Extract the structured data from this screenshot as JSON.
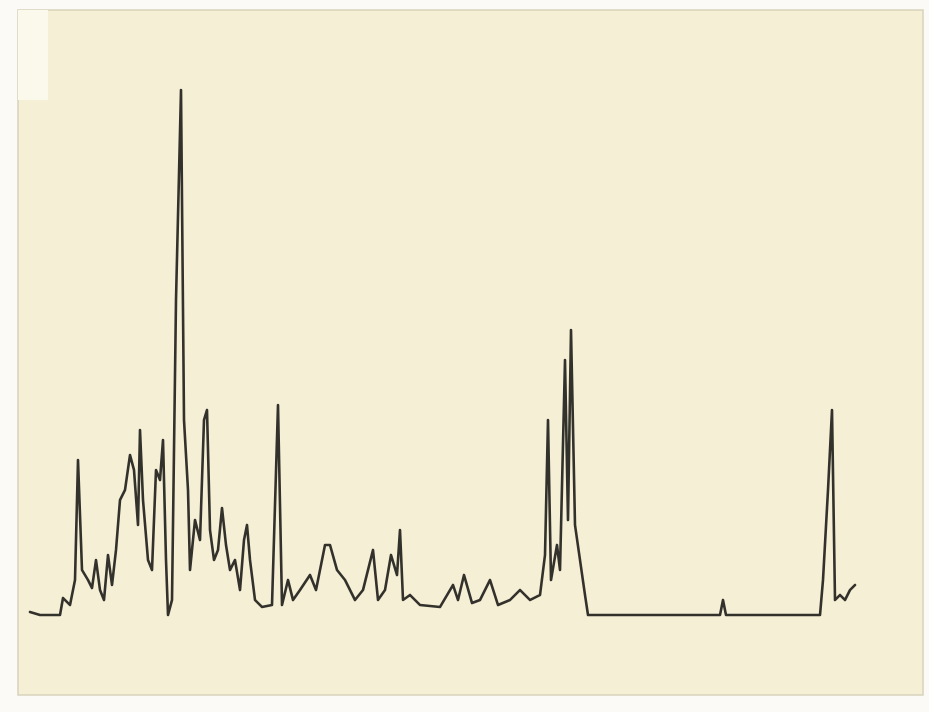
{
  "chart_data": {
    "type": "line",
    "x": [
      30,
      40,
      60,
      63,
      70,
      75,
      78,
      82,
      88,
      92,
      96,
      100,
      104,
      108,
      112,
      116,
      120,
      125,
      130,
      134,
      138,
      140,
      143,
      148,
      152,
      156,
      160,
      163,
      166,
      168,
      172,
      176,
      181,
      184,
      188,
      190,
      195,
      200,
      204,
      207,
      210,
      214,
      218,
      222,
      226,
      230,
      235,
      240,
      244,
      247,
      250,
      255,
      262,
      272,
      278,
      282,
      288,
      293,
      300,
      310,
      316,
      325,
      330,
      337,
      345,
      355,
      363,
      373,
      378,
      385,
      391,
      397,
      400,
      403,
      410,
      420,
      440,
      453,
      458,
      464,
      472,
      480,
      490,
      498,
      510,
      520,
      530,
      540,
      545,
      548,
      551,
      557,
      560,
      565,
      568,
      571,
      575,
      580,
      585,
      588,
      620,
      720,
      723,
      726,
      820,
      823,
      828,
      832,
      835,
      840,
      845,
      850,
      855
    ],
    "values": [
      8,
      5,
      5,
      22,
      15,
      40,
      160,
      50,
      40,
      32,
      60,
      30,
      20,
      65,
      35,
      70,
      120,
      130,
      165,
      150,
      95,
      190,
      120,
      60,
      50,
      150,
      140,
      180,
      60,
      5,
      20,
      320,
      530,
      200,
      130,
      50,
      100,
      80,
      200,
      210,
      90,
      60,
      70,
      112,
      75,
      50,
      60,
      30,
      80,
      95,
      60,
      20,
      13,
      15,
      215,
      15,
      40,
      20,
      30,
      45,
      30,
      75,
      75,
      50,
      40,
      20,
      30,
      70,
      20,
      30,
      65,
      45,
      90,
      20,
      25,
      15,
      13,
      35,
      20,
      45,
      17,
      20,
      40,
      15,
      20,
      30,
      20,
      25,
      65,
      200,
      40,
      75,
      50,
      260,
      100,
      290,
      95,
      60,
      25,
      5,
      5,
      5,
      20,
      5,
      5,
      40,
      130,
      210,
      20,
      25,
      20,
      30,
      35
    ],
    "color": "#1e1c18",
    "xlim": [
      30,
      855
    ],
    "ylim": [
      0,
      540
    ]
  }
}
